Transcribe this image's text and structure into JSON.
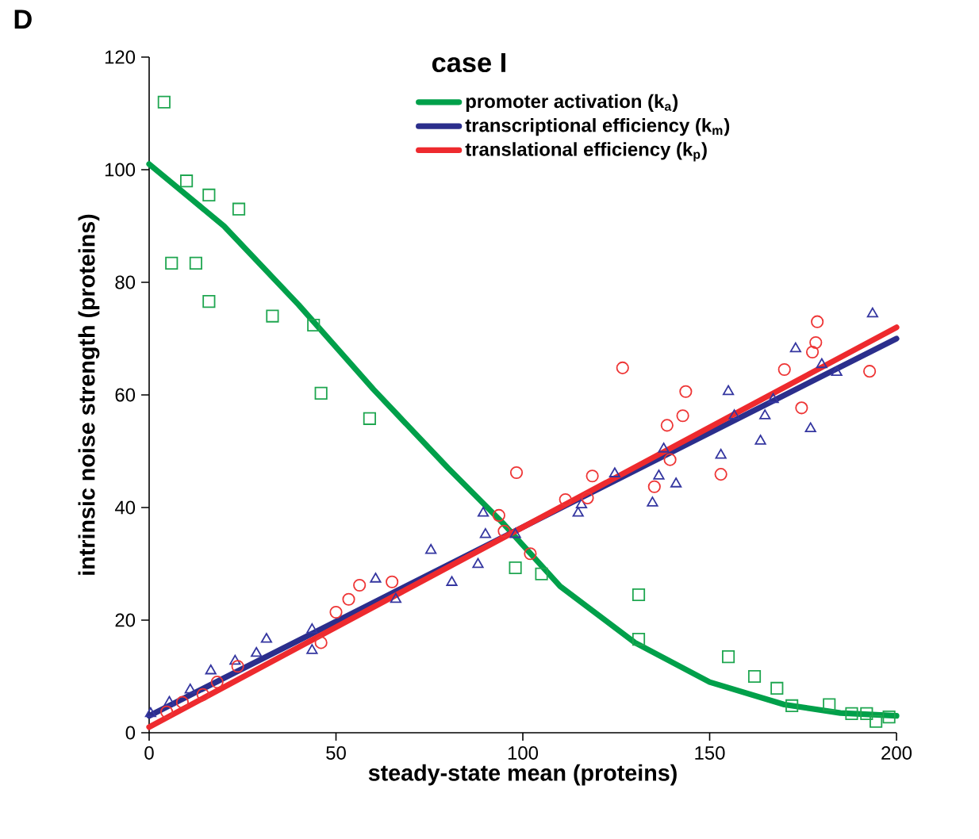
{
  "chart_data": {
    "type": "scatter",
    "title": "case I",
    "xlabel": "steady-state mean (proteins)",
    "ylabel": "intrinsic noise strength (proteins)",
    "annotations": [
      "D"
    ],
    "xlim": [
      0,
      200
    ],
    "xticks": [
      0,
      50,
      100,
      150,
      200
    ],
    "ylim": [
      0,
      120
    ],
    "yticks": [
      0,
      20,
      40,
      60,
      80,
      100,
      120
    ],
    "grid": false,
    "legend": "top right",
    "series": [
      {
        "type": "line",
        "name": "promoter activation (k$_{a}$)",
        "color": "#00a04a",
        "marker": "none",
        "x": [
          0,
          20,
          40,
          60,
          80,
          95,
          110,
          130,
          150,
          170,
          185,
          200
        ],
        "values": [
          101,
          90,
          76,
          61,
          47,
          37,
          26,
          16,
          9,
          5,
          3.5,
          3
        ]
      },
      {
        "type": "line",
        "name": "transcriptional efficiency (k$_{m}$)",
        "color": "#2b2e8c",
        "marker": "none",
        "x": [
          0,
          200
        ],
        "values": [
          3,
          70
        ]
      },
      {
        "type": "line",
        "name": "translational efficiency (k$_{p}$)",
        "color": "#ee2a2e",
        "marker": "none",
        "x": [
          0,
          200
        ],
        "values": [
          1,
          72
        ]
      },
      {
        "color": "#1fa650",
        "marker": "square",
        "x": [
          4,
          10,
          16,
          24,
          6,
          12.5,
          16,
          33,
          44,
          46,
          59,
          98,
          105,
          131,
          131,
          155,
          162,
          168,
          172,
          182,
          188,
          192,
          194.5,
          198
        ],
        "values": [
          112,
          98,
          95.5,
          93,
          83.4,
          83.4,
          76.6,
          74,
          72.4,
          60.3,
          55.8,
          29.3,
          28.2,
          24.5,
          16.6,
          13.5,
          10,
          7.9,
          4.8,
          5,
          3.4,
          3.4,
          2,
          2.8
        ]
      },
      {
        "color": "#3436a0",
        "marker": "triangle",
        "x": [
          0.4,
          5.4,
          11,
          16.5,
          23,
          28.7,
          31.4,
          43.6,
          43.6,
          60.6,
          66,
          75.4,
          81,
          88,
          89.4,
          90,
          98,
          114.8,
          115.7,
          124.6,
          134.7,
          136.4,
          137.7,
          141,
          153,
          155,
          156.6,
          163.6,
          164.8,
          167,
          173,
          177,
          180,
          184,
          193.6
        ],
        "values": [
          3.4,
          5.4,
          7.6,
          11,
          12.7,
          14.1,
          16.6,
          18.3,
          14.6,
          27.3,
          23.7,
          32.4,
          26.7,
          29.9,
          39,
          35.2,
          35.2,
          39,
          40.5,
          46,
          40.8,
          45.6,
          50.4,
          44.2,
          49.3,
          60.6,
          56.3,
          51.8,
          56.3,
          59.2,
          68.2,
          54,
          65.4,
          64,
          74.4
        ]
      },
      {
        "color": "#ee3535",
        "marker": "circle",
        "x": [
          4.7,
          8.9,
          14.4,
          18.2,
          23.7,
          46,
          50,
          53.4,
          56.3,
          65,
          93.6,
          95,
          98.3,
          102,
          111.4,
          117.3,
          118.6,
          126.7,
          135.2,
          138.6,
          139.4,
          142.8,
          143.6,
          153,
          170,
          174.6,
          177.5,
          178.4,
          178.8,
          192.8
        ],
        "values": [
          3.7,
          5.4,
          6.8,
          9,
          11.8,
          16,
          21.4,
          23.7,
          26.2,
          26.8,
          38.6,
          35.8,
          46.2,
          31.8,
          41.4,
          41.7,
          45.6,
          64.8,
          43.7,
          54.6,
          48.5,
          56.3,
          60.6,
          45.9,
          64.5,
          57.7,
          67.6,
          69.3,
          73,
          64.2
        ]
      }
    ]
  }
}
